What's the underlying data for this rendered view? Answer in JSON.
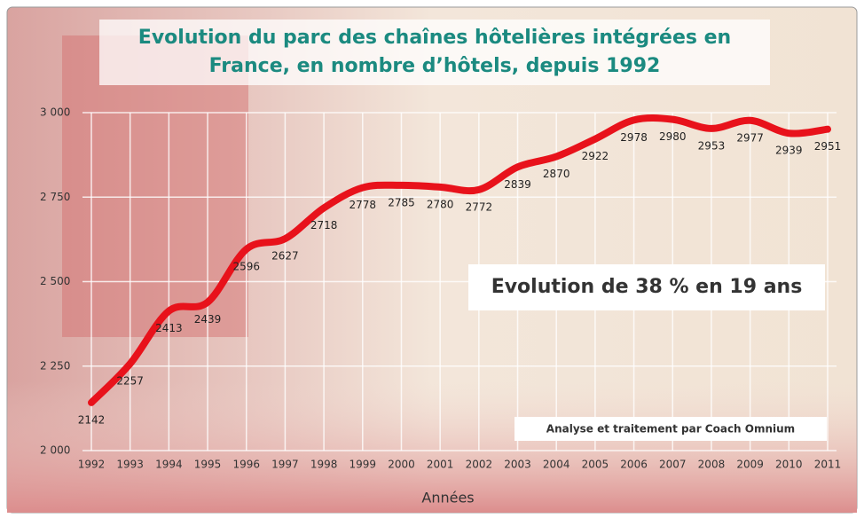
{
  "chart_data": {
    "type": "line",
    "title": [
      "Evolution du parc des chaînes hôtelières intégrées en",
      "France, en nombre d’hôtels, depuis 1992"
    ],
    "x_label": "Années",
    "annotations": [
      "Evolution de 38 % en 19 ans",
      "Analyse et traitement par Coach Omnium"
    ],
    "categories": [
      "1992",
      "1993",
      "1994",
      "1995",
      "1996",
      "1997",
      "1998",
      "1999",
      "2000",
      "2001",
      "2002",
      "2003",
      "2004",
      "2005",
      "2006",
      "2007",
      "2008",
      "2009",
      "2010",
      "2011"
    ],
    "values": [
      2142,
      2257,
      2413,
      2439,
      2596,
      2627,
      2718,
      2778,
      2785,
      2780,
      2772,
      2839,
      2870,
      2922,
      2978,
      2980,
      2953,
      2977,
      2939,
      2951
    ],
    "color": "#e8121b",
    "ylim": [
      2000,
      3000
    ],
    "yticks": [
      {
        "value": 2000,
        "label": "2 000"
      },
      {
        "value": 2250,
        "label": "2 250"
      },
      {
        "value": 2500,
        "label": "2 500"
      },
      {
        "value": 2750,
        "label": "2 750"
      },
      {
        "value": 3000,
        "label": "3 000"
      }
    ],
    "grid": true
  }
}
